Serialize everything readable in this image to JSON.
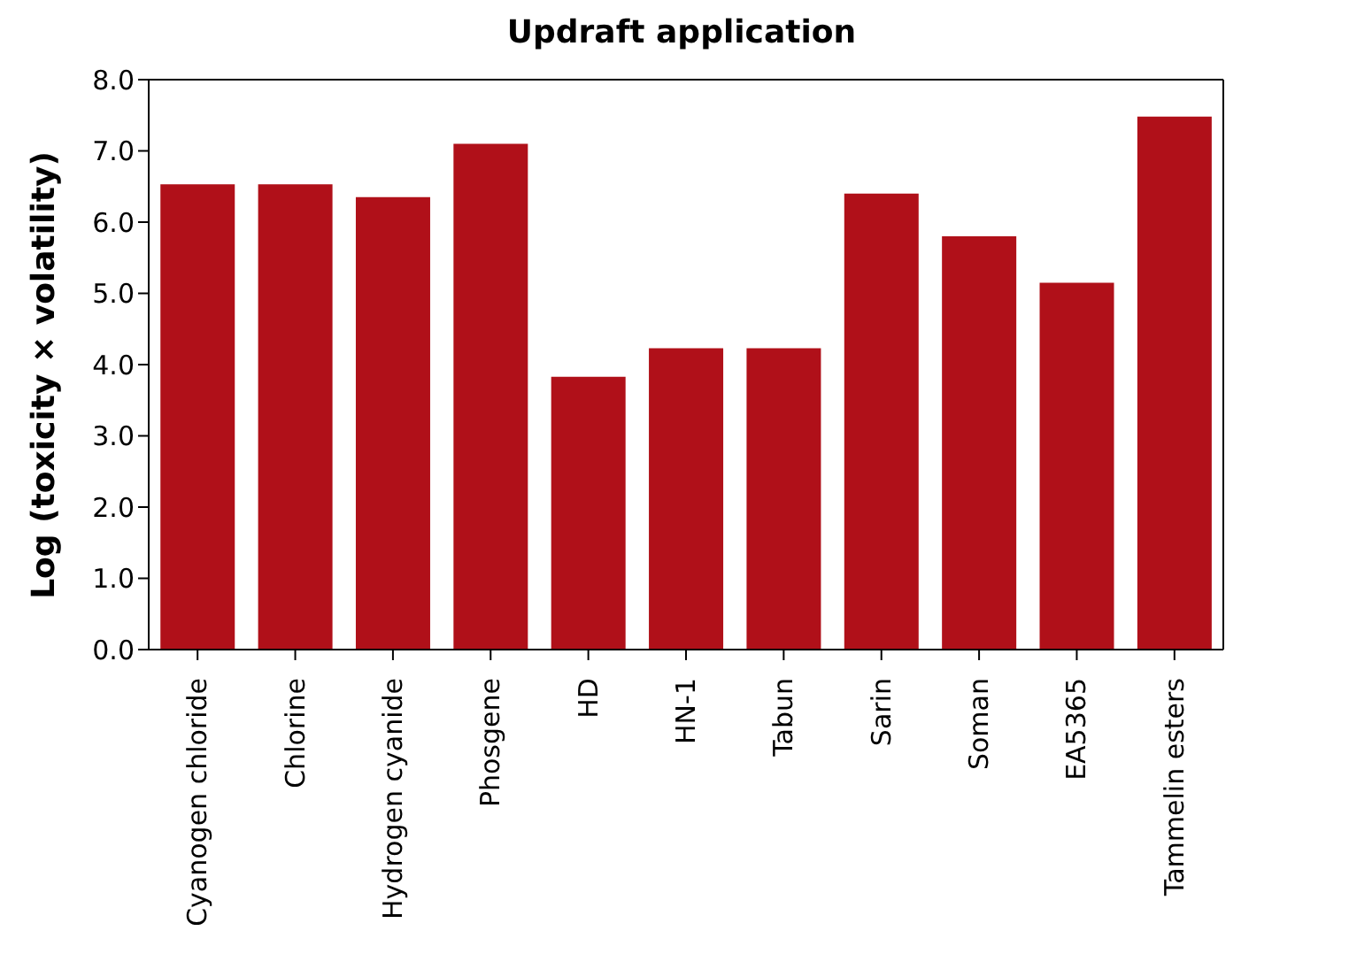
{
  "chart_data": {
    "type": "bar",
    "title": "Updraft application",
    "ylabel": "Log (toxicity × volatility)",
    "categories": [
      "Cyanogen chloride",
      "Chlorine",
      "Hydrogen cyanide",
      "Phosgene",
      "HD",
      "HN-1",
      "Tabun",
      "Sarin",
      "Soman",
      "EA5365",
      "Tammelin esters"
    ],
    "values": [
      6.53,
      6.53,
      6.35,
      7.1,
      3.83,
      4.23,
      4.23,
      6.4,
      5.8,
      5.15,
      7.48
    ],
    "color": "#b01019",
    "ylim": [
      0,
      8
    ],
    "yticks": [
      {
        "value": 0,
        "label": "0.0"
      },
      {
        "value": 1,
        "label": "1.0"
      },
      {
        "value": 2,
        "label": "2.0"
      },
      {
        "value": 3,
        "label": "3.0"
      },
      {
        "value": 4,
        "label": "4.0"
      },
      {
        "value": 5,
        "label": "5.0"
      },
      {
        "value": 6,
        "label": "6.0"
      },
      {
        "value": 7,
        "label": "7.0"
      },
      {
        "value": 8,
        "label": "8.0"
      }
    ],
    "grid": false
  }
}
